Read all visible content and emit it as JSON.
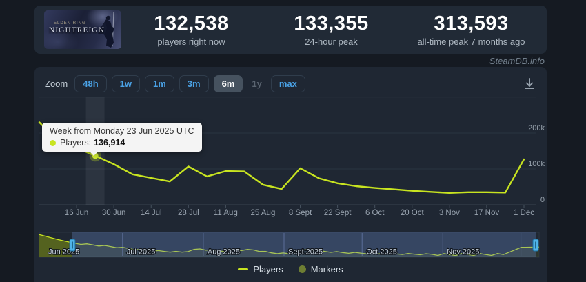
{
  "header": {
    "game_capsule": {
      "title_top": "ELDEN RING",
      "title_bottom": "NIGHTREIGN"
    },
    "stats": [
      {
        "value": "132,538",
        "label": "players right now"
      },
      {
        "value": "133,355",
        "label": "24-hour peak"
      },
      {
        "value": "313,593",
        "label": "all-time peak 7 months ago"
      }
    ],
    "watermark": "SteamDB.info"
  },
  "toolbar": {
    "zoom_label": "Zoom",
    "buttons": [
      {
        "label": "48h",
        "state": "normal"
      },
      {
        "label": "1w",
        "state": "normal"
      },
      {
        "label": "1m",
        "state": "normal"
      },
      {
        "label": "3m",
        "state": "normal"
      },
      {
        "label": "6m",
        "state": "selected"
      },
      {
        "label": "1y",
        "state": "disabled"
      },
      {
        "label": "max",
        "state": "normal"
      }
    ]
  },
  "tooltip": {
    "title": "Week from Monday 23 Jun 2025 UTC",
    "series_label": "Players:",
    "value": "136,914"
  },
  "chart_data": {
    "type": "line",
    "series": [
      {
        "name": "Players",
        "color": "#c8e420",
        "x": [
          "2 Jun",
          "9 Jun",
          "16 Jun",
          "23 Jun",
          "30 Jun",
          "7 Jul",
          "14 Jul",
          "21 Jul",
          "28 Jul",
          "4 Aug",
          "11 Aug",
          "18 Aug",
          "25 Aug",
          "1 Sept",
          "8 Sept",
          "15 Sept",
          "22 Sept",
          "29 Sept",
          "6 Oct",
          "13 Oct",
          "20 Oct",
          "27 Oct",
          "3 Nov",
          "10 Nov",
          "17 Nov",
          "24 Nov",
          "1 Dec"
        ],
        "values": [
          230000,
          178000,
          158000,
          136914,
          113000,
          85000,
          75000,
          65000,
          107000,
          79000,
          94000,
          93000,
          56000,
          44000,
          102000,
          74000,
          60000,
          52000,
          47000,
          43000,
          39000,
          36000,
          33000,
          35000,
          35000,
          34000,
          127000
        ]
      }
    ],
    "xticks": [
      "16 Jun",
      "30 Jun",
      "14 Jul",
      "28 Jul",
      "11 Aug",
      "25 Aug",
      "8 Sept",
      "22 Sept",
      "6 Oct",
      "20 Oct",
      "3 Nov",
      "17 Nov",
      "1 Dec"
    ],
    "yticks": [
      "200k",
      "100k",
      "0"
    ],
    "ylim": [
      0,
      300000
    ],
    "highlight_index": 3,
    "navigator_values": [
      292000,
      230000,
      178000,
      158000,
      136914,
      113000,
      85000,
      75000,
      65000,
      107000,
      79000,
      94000,
      93000,
      56000,
      44000,
      102000,
      74000,
      60000,
      52000,
      47000,
      43000,
      39000,
      36000,
      33000,
      35000,
      35000,
      34000,
      127000,
      131000
    ]
  },
  "navigator": {
    "months": [
      "Jun 2025",
      "Jul 2025",
      "Aug 2025",
      "Sept 2025",
      "Oct 2025",
      "Nov 2025"
    ]
  },
  "legend": {
    "items": [
      {
        "label": "Players"
      },
      {
        "label": "Markers"
      }
    ]
  },
  "colors": {
    "line_green": "#c8e420",
    "marker_olive": "#6e7e33",
    "accent_blue": "#4aa2e6",
    "tooltip_bg": "#f4f4f4",
    "panel_bg": "#1f2733",
    "page_bg": "#151a22",
    "mask_blue": "rgba(102,133,194,0.33)"
  }
}
